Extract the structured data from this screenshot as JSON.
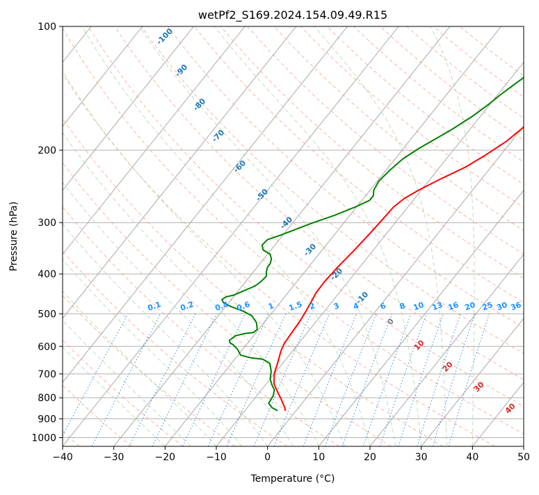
{
  "chart_data": {
    "type": "line",
    "title": "wetPf2_S169.2024.154.09.49.R15",
    "xlabel": "Temperature (°C)",
    "ylabel": "Pressure (hPa)",
    "xlim": [
      -40,
      50
    ],
    "ylim": [
      1050,
      100
    ],
    "y_scale": "log",
    "grid": true,
    "x_ticks": [
      "−40",
      "−30",
      "−20",
      "−10",
      "0",
      "10",
      "20",
      "30",
      "40",
      "50"
    ],
    "y_ticks": [
      "100",
      "200",
      "300",
      "400",
      "500",
      "600",
      "700",
      "800",
      "900",
      "1000"
    ],
    "y_tick_values": [
      100,
      200,
      300,
      400,
      500,
      600,
      700,
      800,
      900,
      1000
    ],
    "isotherm_labels": [
      "-100",
      "-90",
      "-80",
      "-70",
      "-60",
      "-50",
      "-40",
      "-30",
      "-20",
      "-10",
      "0",
      "10",
      "20",
      "30",
      "40"
    ],
    "mixing_ratio_labels": [
      "0.1",
      "0.2",
      "0.4",
      "0.6",
      "1",
      "1.5",
      "2",
      "3",
      "4",
      "6",
      "8",
      "10",
      "13",
      "16",
      "20",
      "25",
      "30",
      "36"
    ],
    "series": [
      {
        "color": "#ff0000",
        "points": [
          [
            -2.1,
            860
          ],
          [
            -2.7,
            845
          ],
          [
            -4.5,
            810
          ],
          [
            -6.5,
            775
          ],
          [
            -8.5,
            740
          ],
          [
            -10.0,
            700
          ],
          [
            -11.0,
            660
          ],
          [
            -12.3,
            615
          ],
          [
            -12.8,
            590
          ],
          [
            -13.0,
            560
          ],
          [
            -13.2,
            525
          ],
          [
            -13.5,
            500
          ],
          [
            -14.0,
            470
          ],
          [
            -14.5,
            445
          ],
          [
            -14.6,
            420
          ],
          [
            -14.3,
            385
          ],
          [
            -13.7,
            350
          ],
          [
            -13.3,
            320
          ],
          [
            -13.0,
            295
          ],
          [
            -12.8,
            275
          ],
          [
            -12.0,
            262
          ],
          [
            -10.5,
            250
          ],
          [
            -8.0,
            235
          ],
          [
            -5.0,
            220
          ],
          [
            -3.0,
            206
          ],
          [
            -1.0,
            190
          ],
          [
            0.2,
            175
          ],
          [
            1.5,
            163
          ],
          [
            3.5,
            152
          ],
          [
            6.5,
            140
          ],
          [
            9.5,
            128
          ],
          [
            11.5,
            118
          ],
          [
            13.0,
            110
          ],
          [
            14.0,
            105
          ],
          [
            14.5,
            100
          ]
        ]
      },
      {
        "color": "#008000",
        "points": [
          [
            -3.6,
            860
          ],
          [
            -5.2,
            845
          ],
          [
            -6.5,
            825
          ],
          [
            -6.8,
            790
          ],
          [
            -7.5,
            765
          ],
          [
            -8.7,
            745
          ],
          [
            -10.0,
            720
          ],
          [
            -11.0,
            690
          ],
          [
            -12.5,
            660
          ],
          [
            -14.5,
            645
          ],
          [
            -17.0,
            640
          ],
          [
            -19.5,
            630
          ],
          [
            -21.0,
            610
          ],
          [
            -22.5,
            595
          ],
          [
            -23.5,
            588
          ],
          [
            -24.0,
            580
          ],
          [
            -23.5,
            565
          ],
          [
            -22.0,
            558
          ],
          [
            -20.5,
            555
          ],
          [
            -20.3,
            545
          ],
          [
            -21.5,
            525
          ],
          [
            -23.5,
            505
          ],
          [
            -26.0,
            492
          ],
          [
            -29.0,
            480
          ],
          [
            -31.0,
            470
          ],
          [
            -31.8,
            462
          ],
          [
            -31.5,
            455
          ],
          [
            -30.2,
            450
          ],
          [
            -29.0,
            440
          ],
          [
            -27.5,
            428
          ],
          [
            -27.0,
            417
          ],
          [
            -26.8,
            405
          ],
          [
            -27.5,
            395
          ],
          [
            -28.0,
            385
          ],
          [
            -28.0,
            378
          ],
          [
            -28.5,
            368
          ],
          [
            -29.5,
            358
          ],
          [
            -31.5,
            350
          ],
          [
            -32.5,
            340
          ],
          [
            -32.3,
            330
          ],
          [
            -30.5,
            322
          ],
          [
            -28.5,
            312
          ],
          [
            -26.0,
            300
          ],
          [
            -23.0,
            288
          ],
          [
            -20.3,
            275
          ],
          [
            -18.5,
            265
          ],
          [
            -18.5,
            258
          ],
          [
            -19.3,
            250
          ],
          [
            -19.7,
            238
          ],
          [
            -19.3,
            225
          ],
          [
            -18.5,
            210
          ],
          [
            -17.0,
            198
          ],
          [
            -15.3,
            188
          ],
          [
            -13.5,
            178
          ],
          [
            -11.5,
            165
          ],
          [
            -10.3,
            155
          ],
          [
            -9.5,
            147
          ],
          [
            -8.3,
            138
          ],
          [
            -6.8,
            128
          ],
          [
            -5.5,
            120
          ],
          [
            -4.0,
            112
          ],
          [
            -2.5,
            106
          ],
          [
            -1.5,
            102
          ],
          [
            -1.2,
            100
          ]
        ]
      }
    ]
  }
}
